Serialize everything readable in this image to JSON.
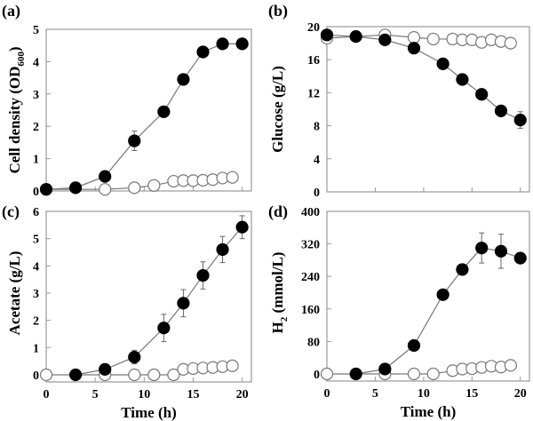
{
  "chart_data": [
    {
      "type": "line",
      "panel_label": "(a)",
      "xlabel": "",
      "ylabel": {
        "text": "Cell density (OD",
        "sub": "600",
        "after": ")"
      },
      "xlim": [
        0,
        20
      ],
      "ylim": [
        0,
        5
      ],
      "xticks": [
        0,
        5,
        10,
        15,
        20
      ],
      "xtick_labels_shown": false,
      "yticks": [
        0,
        1,
        2,
        3,
        4,
        5
      ],
      "grid": false,
      "series": [
        {
          "marker": "filled-circle",
          "color": "#000000",
          "x": [
            0,
            3,
            6,
            9,
            12,
            14,
            16,
            18,
            20
          ],
          "y": [
            0.05,
            0.1,
            0.45,
            1.55,
            2.45,
            3.45,
            4.3,
            4.55,
            4.55
          ],
          "err": [
            0,
            0,
            0,
            0.3,
            0,
            0,
            0,
            0,
            0
          ]
        },
        {
          "marker": "open-circle",
          "color": "#ffffff",
          "x": [
            0,
            6,
            9,
            11,
            13,
            14,
            15,
            16,
            17,
            18,
            19
          ],
          "y": [
            0.05,
            0.05,
            0.1,
            0.17,
            0.3,
            0.32,
            0.32,
            0.33,
            0.35,
            0.4,
            0.42
          ],
          "err": []
        }
      ]
    },
    {
      "type": "line",
      "panel_label": "(b)",
      "xlabel": "",
      "ylabel": {
        "text": "Glucose (g/L)",
        "sub": "",
        "after": ""
      },
      "xlim": [
        0,
        20
      ],
      "ylim": [
        0,
        20
      ],
      "xticks": [
        0,
        5,
        10,
        15,
        20
      ],
      "xtick_labels_shown": false,
      "yticks": [
        0,
        4,
        8,
        12,
        16,
        20
      ],
      "grid": false,
      "series": [
        {
          "marker": "filled-circle",
          "color": "#000000",
          "x": [
            0,
            3,
            6,
            9,
            12,
            14,
            16,
            18,
            20
          ],
          "y": [
            19.0,
            18.8,
            18.4,
            17.4,
            15.5,
            13.6,
            11.8,
            9.8,
            8.7
          ],
          "err": [
            0,
            0,
            0,
            0,
            0,
            0,
            0,
            0,
            1.0
          ]
        },
        {
          "marker": "open-circle",
          "color": "#ffffff",
          "x": [
            0,
            6,
            9,
            11,
            13,
            14,
            15,
            16,
            17,
            18,
            19
          ],
          "y": [
            18.6,
            19.0,
            18.7,
            18.5,
            18.5,
            18.4,
            18.4,
            18.1,
            18.4,
            18.2,
            18.0
          ],
          "err": []
        }
      ]
    },
    {
      "type": "line",
      "panel_label": "(c)",
      "xlabel": "Time (h)",
      "ylabel": {
        "text": "Acetate (g/L)",
        "sub": "",
        "after": ""
      },
      "xlim": [
        0,
        20
      ],
      "ylim": [
        0,
        6
      ],
      "xticks": [
        0,
        5,
        10,
        15,
        20
      ],
      "xtick_labels_shown": true,
      "yticks": [
        0,
        1,
        2,
        3,
        4,
        5,
        6
      ],
      "grid": false,
      "series": [
        {
          "marker": "filled-circle",
          "color": "#000000",
          "x": [
            3,
            6,
            9,
            12,
            14,
            16,
            18,
            20
          ],
          "y": [
            0,
            0.2,
            0.65,
            1.72,
            2.63,
            3.65,
            4.6,
            5.42
          ],
          "err": [
            0,
            0,
            0.25,
            0.5,
            0.5,
            0.5,
            0.48,
            0.42
          ]
        },
        {
          "marker": "open-circle",
          "color": "#ffffff",
          "x": [
            0,
            6,
            9,
            11,
            13,
            14,
            15,
            16,
            17,
            18,
            19
          ],
          "y": [
            0,
            0,
            0,
            0,
            0,
            0.2,
            0.23,
            0.25,
            0.27,
            0.3,
            0.33
          ],
          "err": []
        }
      ]
    },
    {
      "type": "line",
      "panel_label": "(d)",
      "xlabel": "Time (h)",
      "ylabel": {
        "text": "H",
        "sub": "2",
        "after": " (mmol/L)"
      },
      "xlim": [
        0,
        20
      ],
      "ylim": [
        0,
        400
      ],
      "xticks": [
        0,
        5,
        10,
        15,
        20
      ],
      "xtick_labels_shown": true,
      "yticks": [
        0,
        80,
        160,
        240,
        320,
        400
      ],
      "grid": false,
      "series": [
        {
          "marker": "filled-circle",
          "color": "#000000",
          "x": [
            3,
            6,
            9,
            12,
            14,
            16,
            18,
            20
          ],
          "y": [
            0,
            12,
            70,
            195,
            257,
            310,
            302,
            285
          ],
          "err": [
            0,
            0,
            0,
            0,
            8,
            37,
            42,
            10
          ]
        },
        {
          "marker": "open-circle",
          "color": "#ffffff",
          "x": [
            0,
            6,
            9,
            11,
            13,
            14,
            15,
            16,
            17,
            18,
            19
          ],
          "y": [
            0,
            0,
            0,
            0,
            8,
            12,
            13,
            16,
            19,
            17,
            21
          ],
          "err": []
        }
      ]
    }
  ]
}
